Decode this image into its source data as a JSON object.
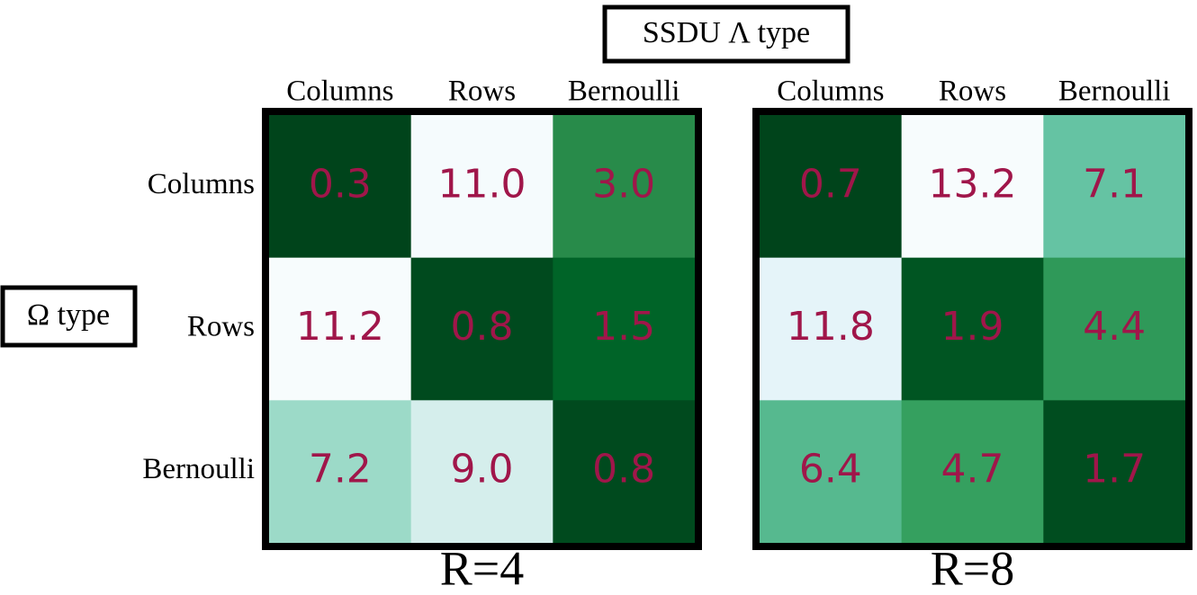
{
  "chart_data": [
    {
      "type": "heatmap",
      "title": "R=4",
      "xlabel": "SSDU Λ type",
      "ylabel": "Ω type",
      "x_categories": [
        "Columns",
        "Rows",
        "Bernoulli"
      ],
      "y_categories": [
        "Columns",
        "Rows",
        "Bernoulli"
      ],
      "values": [
        [
          0.3,
          11.0,
          3.0
        ],
        [
          11.2,
          0.8,
          1.5
        ],
        [
          7.2,
          9.0,
          0.8
        ]
      ],
      "value_labels": [
        [
          "0.3",
          "11.0",
          "3.0"
        ],
        [
          "11.2",
          "0.8",
          "1.5"
        ],
        [
          "7.2",
          "9.0",
          "0.8"
        ]
      ],
      "colors": [
        [
          "#00441b",
          "#f5fbfd",
          "#288b4a"
        ],
        [
          "#f7fcfd",
          "#004a1e",
          "#006428"
        ],
        [
          "#9cdac8",
          "#d5eeec",
          "#004a1e"
        ]
      ],
      "label_color": "#a0164a"
    },
    {
      "type": "heatmap",
      "title": "R=8",
      "x_categories": [
        "Columns",
        "Rows",
        "Bernoulli"
      ],
      "values": [
        [
          0.7,
          13.2,
          7.1
        ],
        [
          11.8,
          1.9,
          4.4
        ],
        [
          6.4,
          4.7,
          1.7
        ]
      ],
      "value_labels": [
        [
          "0.7",
          "13.2",
          "7.1"
        ],
        [
          "11.8",
          "1.9",
          "4.4"
        ],
        [
          "6.4",
          "4.7",
          "1.7"
        ]
      ],
      "colors": [
        [
          "#00441b",
          "#f7fcfd",
          "#65c3a3"
        ],
        [
          "#e5f4f9",
          "#005522",
          "#2f9959"
        ],
        [
          "#56b98f",
          "#35a05f",
          "#004d1f"
        ]
      ],
      "label_color": "#a0164a"
    }
  ]
}
